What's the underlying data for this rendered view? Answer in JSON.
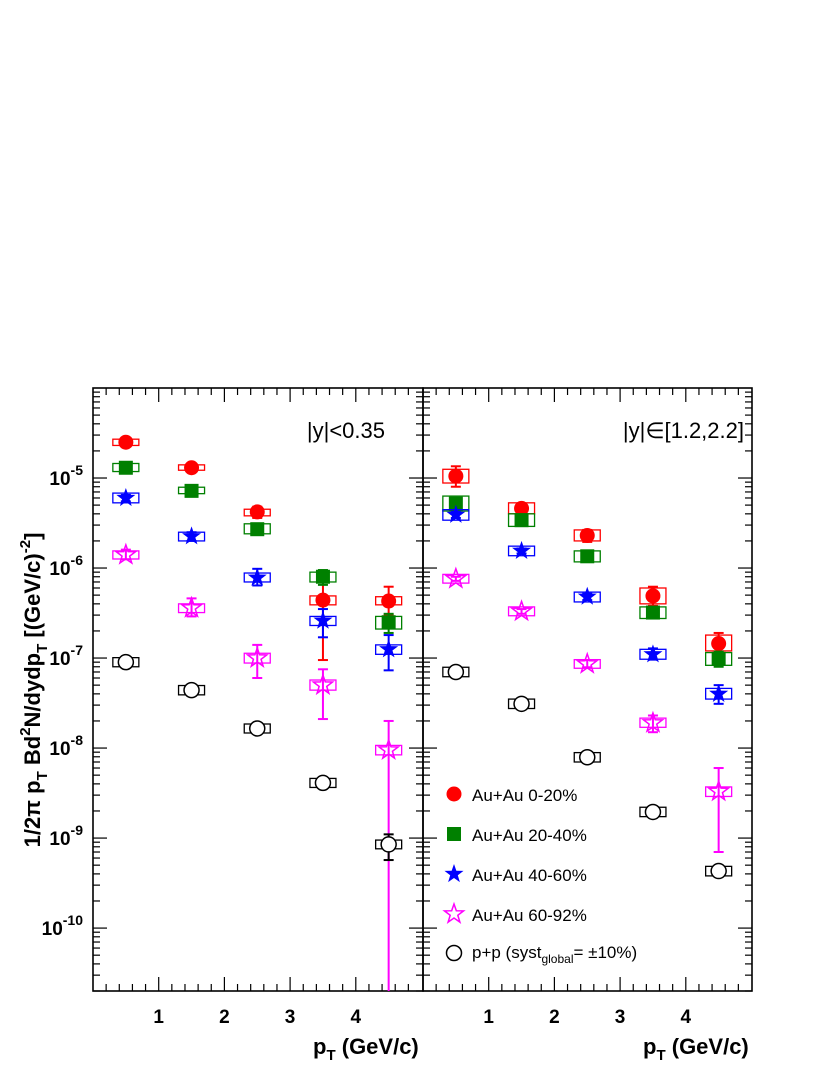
{
  "chart_data": {
    "type": "scatter",
    "y_scale": "log",
    "ylabel": "1/2π p_T Bd²N/dydp_T [(GeV/c)⁻²]",
    "ylabel_parts": {
      "a": "1/2π p",
      "sub1": "T",
      "b": " Bd",
      "sup1": "2",
      "c": "N/dydp",
      "sub2": "T",
      "d": " [(GeV/c)",
      "sup2": "-2",
      "e": "]"
    },
    "ylim": [
      2e-11,
      0.0001
    ],
    "xlim": [
      0,
      5
    ],
    "xlabel_parts": {
      "a": "p",
      "sub": "T",
      "b": " (GeV/c)"
    },
    "x_tick_labels": [
      "1",
      "2",
      "3",
      "4"
    ],
    "y_tick_labels": [
      {
        "value": 1e-05,
        "base": "10",
        "exp": "-5"
      },
      {
        "value": 1e-06,
        "base": "10",
        "exp": "-6"
      },
      {
        "value": 1e-07,
        "base": "10",
        "exp": "-7"
      },
      {
        "value": 1e-08,
        "base": "10",
        "exp": "-8"
      },
      {
        "value": 1e-09,
        "base": "10",
        "exp": "-9"
      },
      {
        "value": 1e-10,
        "base": "10",
        "exp": "-10"
      }
    ],
    "legend": {
      "placement": "bottom-right of right panel",
      "entries": [
        {
          "series": "Au+Au 0-20%",
          "text": "Au+Au 0-20%"
        },
        {
          "series": "Au+Au 20-40%",
          "text": "Au+Au 20-40%"
        },
        {
          "series": "Au+Au 40-60%",
          "text": "Au+Au 40-60%"
        },
        {
          "series": "Au+Au 60-92%",
          "text": "Au+Au 60-92%"
        },
        {
          "series": "p+p",
          "text_a": "p+p (syst",
          "text_sub": "global",
          "text_b": "= ±10%)"
        }
      ]
    },
    "series_styles": [
      {
        "name": "Au+Au 0-20%",
        "color": "#ff0000",
        "marker": "circle-filled"
      },
      {
        "name": "Au+Au 20-40%",
        "color": "#008000",
        "marker": "square-filled"
      },
      {
        "name": "Au+Au 40-60%",
        "color": "#0000ff",
        "marker": "star-filled"
      },
      {
        "name": "Au+Au 60-92%",
        "color": "#ff00ff",
        "marker": "star-open"
      },
      {
        "name": "p+p",
        "color": "#000000",
        "marker": "circle-open"
      }
    ],
    "panels": [
      {
        "label": "|y|<0.35",
        "series": [
          {
            "name": "Au+Au 0-20%",
            "x": [
              0.5,
              1.5,
              2.5,
              3.5,
              4.5
            ],
            "y": [
              2.5e-05,
              1.3e-05,
              4.2e-06,
              4.4e-07,
              4.3e-07
            ],
            "err_low": [
              2.3e-05,
              1.25e-05,
              3.6e-06,
              9.5e-08,
              3e-07
            ],
            "err_high": [
              2.7e-05,
              1.35e-05,
              4.8e-06,
              8e-07,
              6.2e-07
            ],
            "syst_low": [
              2.3e-05,
              1.22e-05,
              3.8e-06,
              3.9e-07,
              3.9e-07
            ],
            "syst_high": [
              2.7e-05,
              1.4e-05,
              4.5e-06,
              4.9e-07,
              4.8e-07
            ]
          },
          {
            "name": "Au+Au 20-40%",
            "x": [
              0.5,
              1.5,
              2.5,
              3.5,
              4.5
            ],
            "y": [
              1.3e-05,
              7.2e-06,
              2.7e-06,
              8e-07,
              2.5e-07
            ],
            "err_low": [
              1.25e-05,
              6.9e-06,
              2.5e-06,
              6.5e-07,
              1.9e-07
            ],
            "err_high": [
              1.35e-05,
              7.5e-06,
              2.9e-06,
              9.5e-07,
              3.1e-07
            ],
            "syst_low": [
              1.18e-05,
              6.7e-06,
              2.4e-06,
              7e-07,
              2.1e-07
            ],
            "syst_high": [
              1.45e-05,
              7.9e-06,
              3.1e-06,
              9e-07,
              2.9e-07
            ]
          },
          {
            "name": "Au+Au 40-60%",
            "x": [
              0.5,
              1.5,
              2.5,
              3.5,
              4.5
            ],
            "y": [
              6e-06,
              2.25e-06,
              7.8e-07,
              2.6e-07,
              1.25e-07
            ],
            "err_low": [
              5.5e-06,
              2e-06,
              6.4e-07,
              1.7e-07,
              7.3e-08
            ],
            "err_high": [
              6.5e-06,
              2.5e-06,
              9.8e-07,
              3.5e-07,
              1.8e-07
            ],
            "syst_low": [
              5.3e-06,
              2e-06,
              7e-07,
              2.3e-07,
              1.1e-07
            ],
            "syst_high": [
              6.8e-06,
              2.5e-06,
              8.8e-07,
              2.9e-07,
              1.4e-07
            ]
          },
          {
            "name": "Au+Au 60-92%",
            "x": [
              0.5,
              1.5,
              2.5,
              3.5,
              4.5
            ],
            "y": [
              1.4e-06,
              3.6e-07,
              1e-07,
              5e-08,
              9.5e-09
            ],
            "err_low": [
              1.25e-06,
              2.9e-07,
              6e-08,
              2.1e-08,
              2e-11
            ],
            "err_high": [
              1.6e-06,
              4.6e-07,
              1.4e-07,
              7.5e-08,
              2e-08
            ],
            "syst_low": [
              1.26e-06,
              3.2e-07,
              8.8e-08,
              4.4e-08,
              8.4e-09
            ],
            "syst_high": [
              1.55e-06,
              4e-07,
              1.13e-07,
              5.7e-08,
              1.07e-08
            ]
          },
          {
            "name": "p+p",
            "x": [
              0.5,
              1.5,
              2.5,
              3.5,
              4.5
            ],
            "y": [
              9e-08,
              4.4e-08,
              1.65e-08,
              4.1e-09,
              8.5e-10
            ],
            "err_low": [
              8.8e-08,
              4.3e-08,
              1.6e-08,
              4e-09,
              5.7e-10
            ],
            "err_high": [
              9.2e-08,
              4.5e-08,
              1.7e-08,
              4.2e-09,
              1.1e-09
            ],
            "syst_low": [
              8e-08,
              3.9e-08,
              1.47e-08,
              3.65e-09,
              7.6e-10
            ],
            "syst_high": [
              1.01e-07,
              4.95e-08,
              1.85e-08,
              4.6e-09,
              9.5e-10
            ]
          }
        ]
      },
      {
        "label": "|y|∈[1.2,2.2]",
        "series": [
          {
            "name": "Au+Au 0-20%",
            "x": [
              0.5,
              1.5,
              2.5,
              3.5,
              4.5
            ],
            "y": [
              1.05e-05,
              4.6e-06,
              2.3e-06,
              4.9e-07,
              1.45e-07
            ],
            "err_low": [
              8e-06,
              4e-06,
              1.95e-06,
              3.8e-07,
              1.15e-07
            ],
            "err_high": [
              1.35e-05,
              5.2e-06,
              2.65e-06,
              6.2e-07,
              1.9e-07
            ],
            "syst_low": [
              8.8e-06,
              4e-06,
              2e-06,
              4e-07,
              1.2e-07
            ],
            "syst_high": [
              1.25e-05,
              5.3e-06,
              2.65e-06,
              6e-07,
              1.8e-07
            ]
          },
          {
            "name": "Au+Au 20-40%",
            "x": [
              0.5,
              1.5,
              2.5,
              3.5,
              4.5
            ],
            "y": [
              5.2e-06,
              3.4e-06,
              1.35e-06,
              3.2e-07,
              9.8e-08
            ],
            "err_low": [
              4.6e-06,
              3.1e-06,
              1.25e-06,
              2.85e-07,
              8e-08
            ],
            "err_high": [
              5.8e-06,
              3.7e-06,
              1.45e-06,
              3.6e-07,
              1.18e-07
            ],
            "syst_low": [
              4.3e-06,
              2.9e-06,
              1.17e-06,
              2.75e-07,
              8.3e-08
            ],
            "syst_high": [
              6.3e-06,
              4e-06,
              1.55e-06,
              3.7e-07,
              1.15e-07
            ]
          },
          {
            "name": "Au+Au 40-60%",
            "x": [
              0.5,
              1.5,
              2.5,
              3.5,
              4.5
            ],
            "y": [
              3.9e-06,
              1.55e-06,
              4.8e-07,
              1.1e-07,
              4e-08
            ],
            "err_low": [
              3.6e-06,
              1.45e-06,
              4.4e-07,
              9.6e-08,
              3.1e-08
            ],
            "err_high": [
              4.2e-06,
              1.65e-06,
              5.2e-07,
              1.28e-07,
              5e-08
            ],
            "syst_low": [
              3.4e-06,
              1.37e-06,
              4.2e-07,
              9.7e-08,
              3.5e-08
            ],
            "syst_high": [
              4.45e-06,
              1.75e-06,
              5.4e-07,
              1.25e-07,
              4.6e-08
            ]
          },
          {
            "name": "Au+Au 60-92%",
            "x": [
              0.5,
              1.5,
              2.5,
              3.5,
              4.5
            ],
            "y": [
              7.6e-07,
              3.3e-07,
              8.6e-08,
              1.9e-08,
              3.3e-09
            ],
            "err_low": [
              7.2e-07,
              3.1e-07,
              7.9e-08,
              1.5e-08,
              7e-10
            ],
            "err_high": [
              8e-07,
              3.5e-07,
              9.5e-08,
              2.3e-08,
              6e-09
            ],
            "syst_low": [
              6.8e-07,
              2.95e-07,
              7.7e-08,
              1.7e-08,
              2.9e-09
            ],
            "syst_high": [
              8.5e-07,
              3.7e-07,
              9.6e-08,
              2.15e-08,
              3.7e-09
            ]
          },
          {
            "name": "p+p",
            "x": [
              0.5,
              1.5,
              2.5,
              3.5,
              4.5
            ],
            "y": [
              7e-08,
              3.1e-08,
              7.9e-09,
              1.95e-09,
              4.3e-10
            ],
            "err_low": [
              6.8e-08,
              3e-08,
              7.7e-09,
              1.9e-09,
              4.2e-10
            ],
            "err_high": [
              7.2e-08,
              3.2e-08,
              8.1e-09,
              2e-09,
              4.4e-10
            ],
            "syst_low": [
              6.2e-08,
              2.75e-08,
              7e-09,
              1.73e-09,
              3.8e-10
            ],
            "syst_high": [
              7.9e-08,
              3.5e-08,
              8.9e-09,
              2.2e-09,
              4.85e-10
            ]
          }
        ]
      }
    ]
  }
}
